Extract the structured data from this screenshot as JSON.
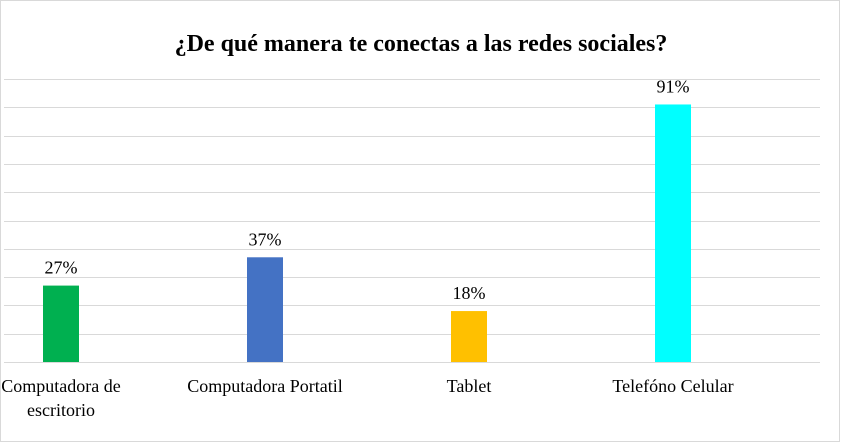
{
  "chart_data": {
    "type": "bar",
    "title": "¿De qué manera te conectas a las redes sociales?",
    "categories": [
      "Computadora de escritorio",
      "Computadora Portatil",
      "Tablet",
      "Telefóno Celular"
    ],
    "category_lines": [
      [
        "Computadora de",
        "escritorio"
      ],
      [
        "Computadora Portatil"
      ],
      [
        "Tablet"
      ],
      [
        "Telefóno Celular"
      ]
    ],
    "values": [
      27,
      37,
      18,
      91
    ],
    "data_labels": [
      "27%",
      "37%",
      "18%",
      "91%"
    ],
    "colors": [
      "#00b050",
      "#4472c4",
      "#ffc000",
      "#00ffff"
    ],
    "ylim": [
      0,
      100
    ],
    "grid": true,
    "y_axis_visible": false
  }
}
